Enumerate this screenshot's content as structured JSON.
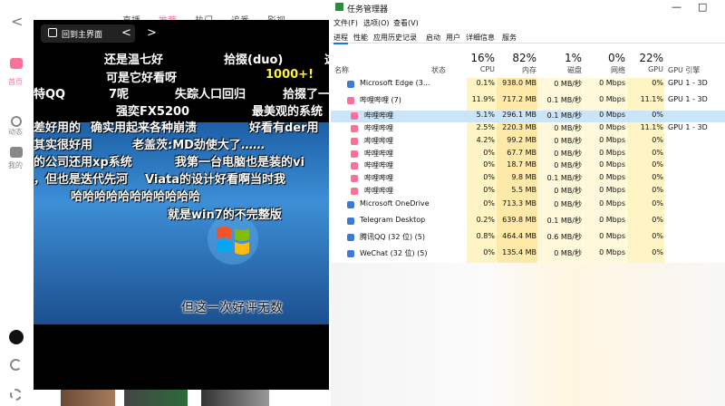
{
  "bilibili": {
    "nav": [
      "首页",
      "动态",
      "我的"
    ],
    "top_tabs": [
      "直播",
      "推荐",
      "热门",
      "追番",
      "影视"
    ],
    "back_button": "回到主界面",
    "danmaku": [
      {
        "text": "还是温七好"
      },
      {
        "text": "拾掇(duo)"
      },
      {
        "text": "这"
      },
      {
        "text": "可是它好看呀"
      },
      {
        "text": "1000+!",
        "color": "#fff23a"
      },
      {
        "text": "特QQ"
      },
      {
        "text": "7呢"
      },
      {
        "text": "失踪人口回归"
      },
      {
        "text": "拾掇了一"
      },
      {
        "text": "强奕FX5200"
      },
      {
        "text": "最美观的系统"
      },
      {
        "text": "差好用的"
      },
      {
        "text": "确实用起来各种崩溃"
      },
      {
        "text": "好看有der用"
      },
      {
        "text": "其实很好用"
      },
      {
        "text": "老盖茨:MD劲使大了……"
      },
      {
        "text": "的公司还用xp系统"
      },
      {
        "text": "我第一台电脑也是装的vi"
      },
      {
        "text": "，但也是迭代先河"
      },
      {
        "text": "Viata的设计好看啊当时我"
      },
      {
        "text": "哈哈哈哈哈哈哈哈哈哈哈"
      },
      {
        "text": "就是win7的不完整版"
      }
    ],
    "subtitle": "但这一次好评无数"
  },
  "task_manager": {
    "title": "任务管理器",
    "menu": [
      "文件(F)",
      "选项(O)",
      "查看(V)"
    ],
    "tabs": [
      "进程",
      "性能",
      "应用历史记录",
      "启动",
      "用户",
      "详细信息",
      "服务"
    ],
    "columns": [
      {
        "label": "名称"
      },
      {
        "label": "状态"
      },
      {
        "percent": "16%",
        "label": "CPU"
      },
      {
        "percent": "82%",
        "label": "内存"
      },
      {
        "percent": "1%",
        "label": "磁盘"
      },
      {
        "percent": "0%",
        "label": "网络"
      },
      {
        "percent": "22%",
        "label": "GPU"
      },
      {
        "label": "GPU 引擎"
      }
    ],
    "rows": [
      {
        "name": "Microsoft Edge (3...",
        "cpu": "0.1%",
        "memory": "938.0 MB",
        "disk": "0 MB/秒",
        "network": "0 Mbps",
        "gpu": "0%",
        "engine": "GPU 1 - 3D"
      },
      {
        "name": "哔哩哔哩 (7)",
        "cpu": "11.9%",
        "memory": "717.2 MB",
        "disk": "0.1 MB/秒",
        "network": "0 Mbps",
        "gpu": "11.1%",
        "engine": "GPU 1 - 3D"
      },
      {
        "name": "哔哩哔哩",
        "cpu": "5.1%",
        "memory": "296.1 MB",
        "disk": "0.1 MB/秒",
        "network": "0 Mbps",
        "gpu": "0%",
        "child": true,
        "selected": true
      },
      {
        "name": "哔哩哔哩",
        "cpu": "2.5%",
        "memory": "220.3 MB",
        "disk": "0 MB/秒",
        "network": "0 Mbps",
        "gpu": "11.1%",
        "engine": "GPU 1 - 3D",
        "child": true
      },
      {
        "name": "哔哩哔哩",
        "cpu": "4.2%",
        "memory": "99.2 MB",
        "disk": "0 MB/秒",
        "network": "0 Mbps",
        "gpu": "0%",
        "child": true
      },
      {
        "name": "哔哩哔哩",
        "cpu": "0%",
        "memory": "67.7 MB",
        "disk": "0 MB/秒",
        "network": "0 Mbps",
        "gpu": "0%",
        "child": true
      },
      {
        "name": "哔哩哔哩",
        "cpu": "0%",
        "memory": "18.7 MB",
        "disk": "0 MB/秒",
        "network": "0 Mbps",
        "gpu": "0%",
        "child": true
      },
      {
        "name": "哔哩哔哩",
        "cpu": "0%",
        "memory": "9.8 MB",
        "disk": "0.1 MB/秒",
        "network": "0 Mbps",
        "gpu": "0%",
        "child": true
      },
      {
        "name": "哔哩哔哩",
        "cpu": "0%",
        "memory": "5.5 MB",
        "disk": "0 MB/秒",
        "network": "0 Mbps",
        "gpu": "0%",
        "child": true
      },
      {
        "name": "Microsoft OneDrive",
        "cpu": "0%",
        "memory": "713.3 MB",
        "disk": "0 MB/秒",
        "network": "0 Mbps",
        "gpu": "0%"
      },
      {
        "name": "Telegram Desktop",
        "cpu": "0.2%",
        "memory": "639.8 MB",
        "disk": "0.1 MB/秒",
        "network": "0 Mbps",
        "gpu": "0%"
      },
      {
        "name": "腾讯QQ (32 位) (5)",
        "cpu": "0.8%",
        "memory": "464.4 MB",
        "disk": "0.6 MB/秒",
        "network": "0 Mbps",
        "gpu": "0%"
      },
      {
        "name": "WeChat (32 位) (5)",
        "cpu": "0%",
        "memory": "135.4 MB",
        "disk": "0 MB/秒",
        "network": "0 Mbps",
        "gpu": "0%"
      }
    ]
  }
}
